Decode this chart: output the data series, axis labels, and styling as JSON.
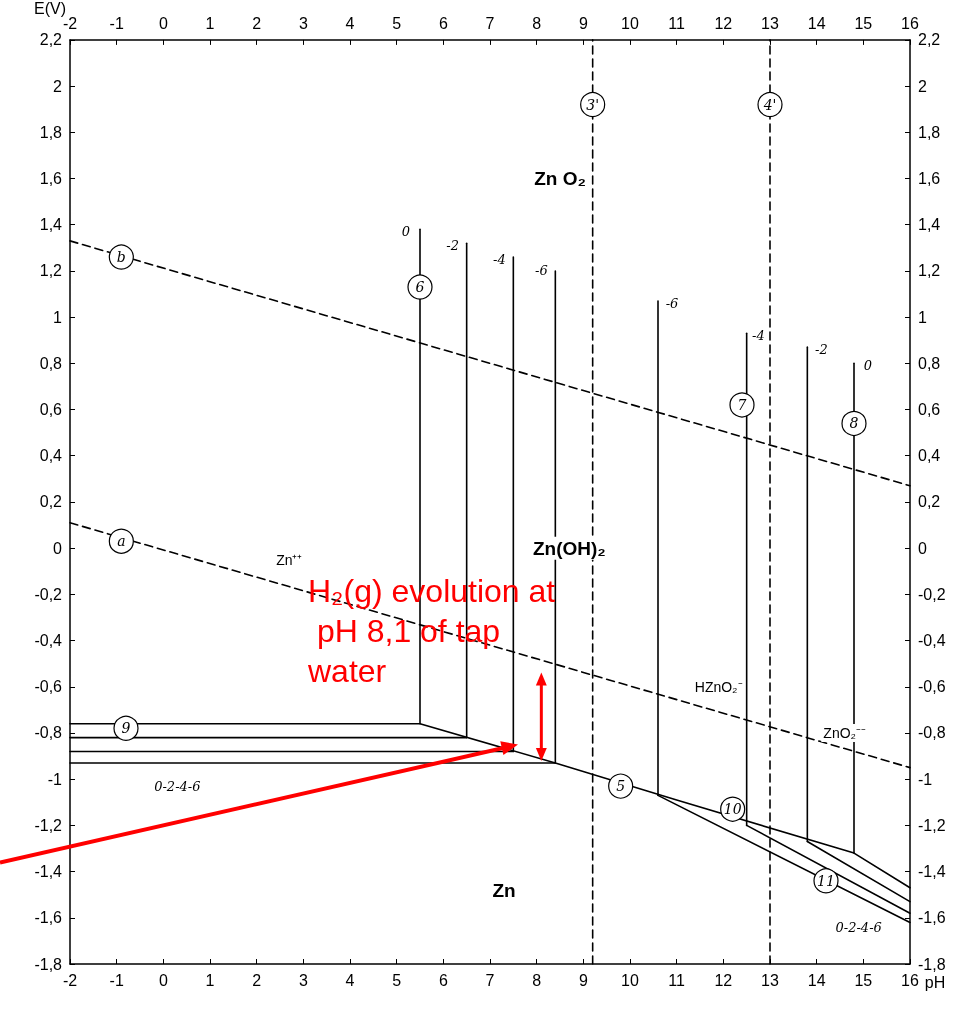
{
  "chart_data": {
    "type": "line",
    "xlabel": "pH",
    "ylabel": "E(V)",
    "xlim": [
      -2,
      16
    ],
    "xticks": [
      -2,
      -1,
      0,
      1,
      2,
      3,
      4,
      5,
      6,
      7,
      8,
      9,
      10,
      11,
      12,
      13,
      14,
      15,
      16
    ],
    "x2lim": [
      -2,
      16
    ],
    "x2ticks": [
      -2,
      -1,
      0,
      1,
      2,
      3,
      4,
      5,
      6,
      7,
      8,
      9,
      10,
      11,
      12,
      13,
      14,
      15,
      16
    ],
    "ylim": [
      -1.8,
      2.2
    ],
    "yticks": [
      {
        "value": -1.8,
        "label": "-1,8"
      },
      {
        "value": -1.6,
        "label": "-1,6"
      },
      {
        "value": -1.4,
        "label": "-1,4"
      },
      {
        "value": -1.2,
        "label": "-1,2"
      },
      -1,
      {
        "value": -0.8,
        "label": "-0,8"
      },
      {
        "value": -0.6,
        "label": "-0,6"
      },
      {
        "value": -0.4,
        "label": "-0,4"
      },
      {
        "value": -0.2,
        "label": "-0,2"
      },
      0,
      {
        "value": 0.2,
        "label": "0,2"
      },
      {
        "value": 0.4,
        "label": "0,4"
      },
      {
        "value": 0.6,
        "label": "0,6"
      },
      {
        "value": 0.8,
        "label": "0,8"
      },
      1,
      {
        "value": 1.2,
        "label": "1,2"
      },
      {
        "value": 1.4,
        "label": "1,4"
      },
      {
        "value": 1.6,
        "label": "1,6"
      },
      {
        "value": 1.8,
        "label": "1,8"
      },
      2,
      {
        "value": 2.2,
        "label": "2,2"
      }
    ],
    "y2lim": [
      -1.8,
      2.2
    ],
    "y2ticks": [
      {
        "value": -1.8,
        "label": "-1,8"
      },
      {
        "value": -1.6,
        "label": "-1,6"
      },
      {
        "value": -1.4,
        "label": "-1,4"
      },
      {
        "value": -1.2,
        "label": "-1,2"
      },
      -1,
      {
        "value": -0.8,
        "label": "-0,8"
      },
      {
        "value": -0.6,
        "label": "-0,6"
      },
      {
        "value": -0.4,
        "label": "-0,4"
      },
      {
        "value": -0.2,
        "label": "-0,2"
      },
      0,
      {
        "value": 0.2,
        "label": "0,2"
      },
      {
        "value": 0.4,
        "label": "0,4"
      },
      {
        "value": 0.6,
        "label": "0,6"
      },
      {
        "value": 0.8,
        "label": "0,8"
      },
      1,
      {
        "value": 1.2,
        "label": "1,2"
      },
      {
        "value": 1.4,
        "label": "1,4"
      },
      {
        "value": 1.6,
        "label": "1,6"
      },
      {
        "value": 1.8,
        "label": "1,8"
      },
      2,
      {
        "value": 2.2,
        "label": "2,2"
      }
    ],
    "grid": false,
    "marker": "none",
    "series": [
      {
        "color": "#000000",
        "line_style": "dashed",
        "x": [
          -2,
          16
        ],
        "values": [
          1.33,
          0.27
        ]
      },
      {
        "color": "#000000",
        "line_style": "dashed",
        "x": [
          -2,
          16
        ],
        "values": [
          0.11,
          -0.95
        ]
      },
      {
        "color": "#000000",
        "line_style": "dashed",
        "x": [
          9.2,
          9.2
        ],
        "values": [
          -1.8,
          2.2
        ]
      },
      {
        "color": "#000000",
        "line_style": "dashed",
        "x": [
          13,
          13
        ],
        "values": [
          -1.8,
          2.2
        ]
      },
      {
        "color": "#000000",
        "line_style": "solid",
        "x": [
          5.5,
          5.5
        ],
        "values": [
          -0.76,
          1.38
        ]
      },
      {
        "color": "#000000",
        "line_style": "solid",
        "x": [
          6.5,
          6.5
        ],
        "values": [
          -0.82,
          1.32
        ]
      },
      {
        "color": "#000000",
        "line_style": "solid",
        "x": [
          7.5,
          7.5
        ],
        "values": [
          -0.88,
          1.26
        ]
      },
      {
        "color": "#000000",
        "line_style": "solid",
        "x": [
          8.4,
          8.4
        ],
        "values": [
          -0.93,
          1.2
        ]
      },
      {
        "color": "#000000",
        "line_style": "solid",
        "x": [
          10.6,
          10.6
        ],
        "values": [
          -1.07,
          1.07
        ]
      },
      {
        "color": "#000000",
        "line_style": "solid",
        "x": [
          12.5,
          12.5
        ],
        "values": [
          -1.2,
          0.93
        ]
      },
      {
        "color": "#000000",
        "line_style": "solid",
        "x": [
          13.8,
          13.8
        ],
        "values": [
          -1.27,
          0.87
        ]
      },
      {
        "color": "#000000",
        "line_style": "solid",
        "x": [
          14.8,
          14.8
        ],
        "values": [
          -1.32,
          0.8
        ]
      },
      {
        "color": "#000000",
        "line_style": "solid",
        "x": [
          -2,
          6.5
        ],
        "values": [
          -0.82,
          -0.82
        ]
      },
      {
        "color": "#000000",
        "line_style": "solid",
        "x": [
          -2,
          7.5
        ],
        "values": [
          -0.88,
          -0.88
        ]
      },
      {
        "color": "#000000",
        "line_style": "solid",
        "x": [
          -2,
          8.4
        ],
        "values": [
          -0.93,
          -0.93
        ]
      },
      {
        "color": "#000000",
        "line_style": "solid",
        "x": [
          -2,
          5.5,
          8.4,
          11,
          14.8,
          16
        ],
        "values": [
          -0.76,
          -0.76,
          -0.93,
          -1.09,
          -1.32,
          -1.47
        ]
      },
      {
        "color": "#000000",
        "line_style": "solid",
        "x": [
          13.8,
          16
        ],
        "values": [
          -1.27,
          -1.53
        ]
      },
      {
        "color": "#000000",
        "line_style": "solid",
        "x": [
          12.5,
          16
        ],
        "values": [
          -1.2,
          -1.58
        ]
      },
      {
        "color": "#000000",
        "line_style": "solid",
        "x": [
          10.6,
          16
        ],
        "values": [
          -1.07,
          -1.62
        ]
      }
    ],
    "annotations": [
      {
        "text": "b",
        "x": -0.9,
        "y": 1.26
      },
      {
        "text": "a",
        "x": -0.9,
        "y": 0.03
      },
      {
        "text": "3'",
        "x": 9.2,
        "y": 1.92
      },
      {
        "text": "4'",
        "x": 13,
        "y": 1.92
      },
      {
        "text": "6",
        "x": 5.5,
        "y": 1.13
      },
      {
        "text": "7",
        "x": 12.4,
        "y": 0.62
      },
      {
        "text": "8",
        "x": 14.8,
        "y": 0.54
      },
      {
        "text": "9",
        "x": -0.8,
        "y": -0.78
      },
      {
        "text": "5",
        "x": 9.8,
        "y": -1.03
      },
      {
        "text": "10",
        "x": 12.2,
        "y": -1.13
      },
      {
        "text": "11",
        "x": 14.2,
        "y": -1.44
      },
      {
        "text": "0",
        "x": 5.2,
        "y": 1.37
      },
      {
        "text": "-2",
        "x": 6.2,
        "y": 1.31
      },
      {
        "text": "-4",
        "x": 7.2,
        "y": 1.25
      },
      {
        "text": "-6",
        "x": 8.1,
        "y": 1.2
      },
      {
        "text": "-6",
        "x": 10.9,
        "y": 1.06
      },
      {
        "text": "-4",
        "x": 12.75,
        "y": 0.92
      },
      {
        "text": "-2",
        "x": 14.1,
        "y": 0.86
      },
      {
        "text": "0",
        "x": 15.1,
        "y": 0.79
      },
      "0-2-4-6",
      "0-2-4-6",
      "Zn O₂",
      "Zn(OH)₂",
      "Zn",
      "Zn⁺⁺",
      "HZnO₂⁻",
      "ZnO₂⁻⁻",
      "H₂(g) evolution at pH 8,1 of tap water"
    ]
  }
}
